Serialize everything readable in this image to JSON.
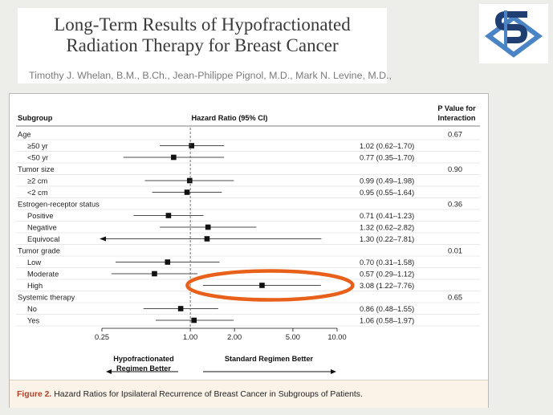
{
  "slide": {
    "title_line1": "Long-Term Results of Hypofractionated",
    "title_line2": "Radiation Therapy for Breast Cancer",
    "authors": "Timothy J. Whelan, B.M., B.Ch., Jean-Philippe Pignol, M.D., Mark N. Levine, M.D.,"
  },
  "caption": {
    "label": "Figure 2.",
    "text": "Hazard Ratios for Ipsilateral Recurrence of Breast Cancer in Subgroups of Patients."
  },
  "colors": {
    "highlight_ellipse": "#e8601a",
    "marker": "#111111",
    "logo_dark": "#1f3f73",
    "logo_light": "#4a84c4"
  },
  "chart_data": {
    "type": "forest",
    "header": {
      "subgroup": "Subgroup",
      "hazard_ratio": "Hazard Ratio (95% CI)",
      "p_value_line1": "P Value for",
      "p_value_line2": "Interaction"
    },
    "x_scale": "log",
    "xlim": [
      0.25,
      10.0
    ],
    "reference_line": 1.0,
    "x_ticks": [
      0.25,
      1.0,
      2.0,
      5.0,
      10.0
    ],
    "x_tick_labels": [
      "0.25",
      "1.00",
      "2.00",
      "5.00",
      "10.00"
    ],
    "left_label_line1": "Hypofractionated",
    "left_label_line2": "Regimen Better",
    "right_label": "Standard Regimen Better",
    "highlighted_row": "High",
    "rows": [
      {
        "label": "Age",
        "group": true,
        "p": "0.67"
      },
      {
        "label": "≥50 yr",
        "hr": 1.02,
        "lo": 0.62,
        "hi": 1.7,
        "ci_text": "1.02 (0.62–1.70)"
      },
      {
        "label": "<50 yr",
        "hr": 0.77,
        "lo": 0.35,
        "hi": 1.7,
        "ci_text": "0.77 (0.35–1.70)"
      },
      {
        "label": "Tumor size",
        "group": true,
        "p": "0.90"
      },
      {
        "label": "≥2 cm",
        "hr": 0.99,
        "lo": 0.49,
        "hi": 1.98,
        "ci_text": "0.99 (0.49–1.98)"
      },
      {
        "label": "<2 cm",
        "hr": 0.95,
        "lo": 0.55,
        "hi": 1.64,
        "ci_text": "0.95 (0.55–1.64)"
      },
      {
        "label": "Estrogen-receptor status",
        "group": true,
        "p": "0.36"
      },
      {
        "label": "Positive",
        "hr": 0.71,
        "lo": 0.41,
        "hi": 1.23,
        "ci_text": "0.71 (0.41–1.23)"
      },
      {
        "label": "Negative",
        "hr": 1.32,
        "lo": 0.62,
        "hi": 2.82,
        "ci_text": "1.32 (0.62–2.82)"
      },
      {
        "label": "Equivocal",
        "hr": 1.3,
        "lo": 0.22,
        "hi": 7.81,
        "ci_text": "1.30 (0.22–7.81)"
      },
      {
        "label": "Tumor grade",
        "group": true,
        "p": "0.01"
      },
      {
        "label": "Low",
        "hr": 0.7,
        "lo": 0.31,
        "hi": 1.58,
        "ci_text": "0.70 (0.31–1.58)"
      },
      {
        "label": "Moderate",
        "hr": 0.57,
        "lo": 0.29,
        "hi": 1.12,
        "ci_text": "0.57 (0.29–1.12)"
      },
      {
        "label": "High",
        "hr": 3.08,
        "lo": 1.22,
        "hi": 7.76,
        "ci_text": "3.08 (1.22–7.76)"
      },
      {
        "label": "Systemic therapy",
        "group": true,
        "p": "0.65"
      },
      {
        "label": "No",
        "hr": 0.86,
        "lo": 0.48,
        "hi": 1.55,
        "ci_text": "0.86 (0.48–1.55)"
      },
      {
        "label": "Yes",
        "hr": 1.06,
        "lo": 0.58,
        "hi": 1.97,
        "ci_text": "1.06 (0.58–1.97)"
      }
    ]
  }
}
